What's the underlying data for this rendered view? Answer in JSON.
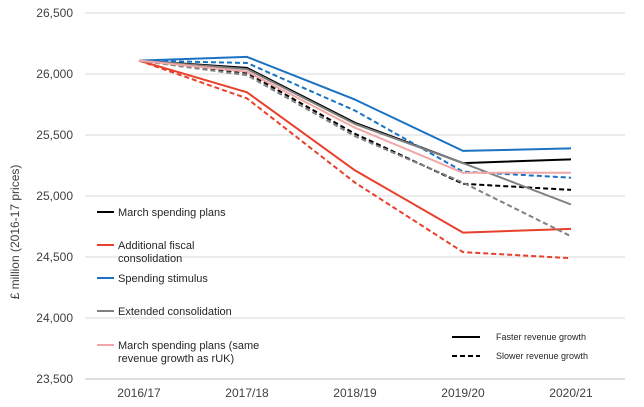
{
  "chart_data": {
    "type": "line",
    "title": "",
    "xlabel": "",
    "ylabel": "£ million (2016-17 prices)",
    "ylim": [
      23500,
      26500
    ],
    "yticks": [
      "23,500",
      "24,000",
      "24,500",
      "25,000",
      "25,500",
      "26,000",
      "26,500"
    ],
    "ytick_values": [
      23500,
      24000,
      24500,
      25000,
      25500,
      26000,
      26500
    ],
    "categories": [
      "2016/17",
      "2017/18",
      "2018/19",
      "2019/20",
      "2020/21"
    ],
    "grid": "horizontal",
    "legend_position": "left",
    "series": [
      {
        "name": "March spending plans",
        "color": "#000000",
        "variant": "faster",
        "values": [
          26110,
          26050,
          25600,
          25270,
          25300
        ]
      },
      {
        "name": "March spending plans",
        "color": "#000000",
        "variant": "slower",
        "values": [
          26110,
          26010,
          25510,
          25100,
          25050
        ]
      },
      {
        "name": "Additional fiscal consolidation",
        "color": "#e8402a",
        "variant": "faster",
        "values": [
          26110,
          25850,
          25210,
          24700,
          24730
        ]
      },
      {
        "name": "Additional fiscal consolidation",
        "color": "#e8402a",
        "variant": "slower",
        "values": [
          26110,
          25800,
          25110,
          24540,
          24490
        ]
      },
      {
        "name": "Spending stimulus",
        "color": "#1a72c2",
        "variant": "faster",
        "values": [
          26110,
          26140,
          25790,
          25370,
          25390
        ]
      },
      {
        "name": "Spending stimulus",
        "color": "#1a72c2",
        "variant": "slower",
        "values": [
          26110,
          26090,
          25700,
          25200,
          25150
        ]
      },
      {
        "name": "Extended consolidation",
        "color": "#808080",
        "variant": "faster",
        "values": [
          26110,
          26040,
          25590,
          25270,
          24930
        ]
      },
      {
        "name": "Extended consolidation",
        "color": "#808080",
        "variant": "slower",
        "values": [
          26110,
          25990,
          25490,
          25110,
          24670
        ]
      },
      {
        "name": "March spending plans (same revenue growth as rUK)",
        "color": "#f2a7a7",
        "variant": "faster",
        "values": [
          26110,
          26020,
          25560,
          25190,
          25190
        ]
      }
    ],
    "legend": [
      {
        "lines": [
          "March spending plans"
        ],
        "color": "#000000"
      },
      {
        "lines": [
          "Additional fiscal",
          "consolidation"
        ],
        "color": "#e8402a"
      },
      {
        "lines": [
          "Spending stimulus"
        ],
        "color": "#1a72c2"
      },
      {
        "lines": [
          "Extended consolidation"
        ],
        "color": "#808080"
      },
      {
        "lines": [
          "March spending plans (same",
          "revenue growth as rUK)"
        ],
        "color": "#f2a7a7"
      }
    ],
    "style_legend": [
      {
        "label": "Faster revenue growth",
        "variant": "faster"
      },
      {
        "label": "Slower revenue growth",
        "variant": "slower"
      }
    ]
  }
}
